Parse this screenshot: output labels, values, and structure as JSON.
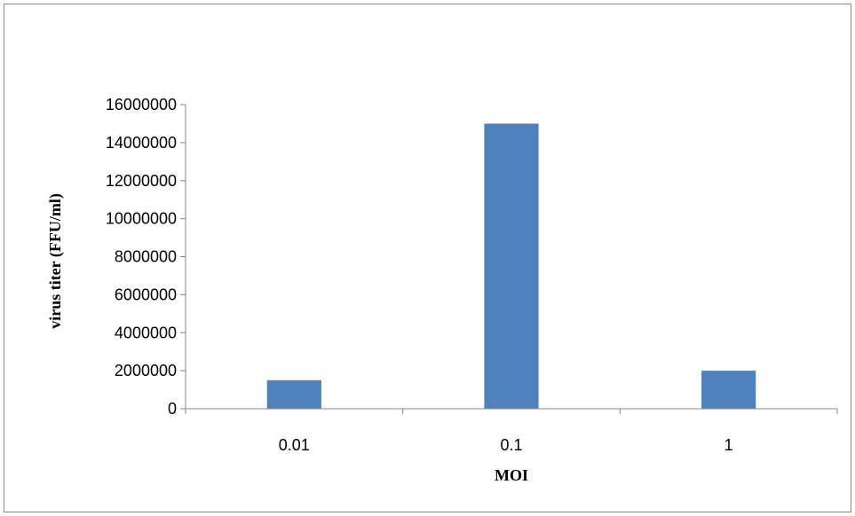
{
  "chart_data": {
    "type": "bar",
    "title": "",
    "categories": [
      "0.01",
      "0.1",
      "1"
    ],
    "values": [
      1500000,
      15000000,
      2000000
    ],
    "xlabel": "MOI",
    "ylabel": "virus  titer (FFU/ml)",
    "ylim": [
      0,
      16000000
    ],
    "yticks": [
      0,
      2000000,
      4000000,
      6000000,
      8000000,
      10000000,
      12000000,
      14000000,
      16000000
    ],
    "ytick_labels": [
      "0",
      "2000000",
      "4000000",
      "6000000",
      "8000000",
      "10000000",
      "12000000",
      "14000000",
      "16000000"
    ],
    "grid": false,
    "legend": "none",
    "colors": {
      "bar": "#4f81bd",
      "axis": "#868686",
      "border": "#8c8c8c"
    }
  }
}
